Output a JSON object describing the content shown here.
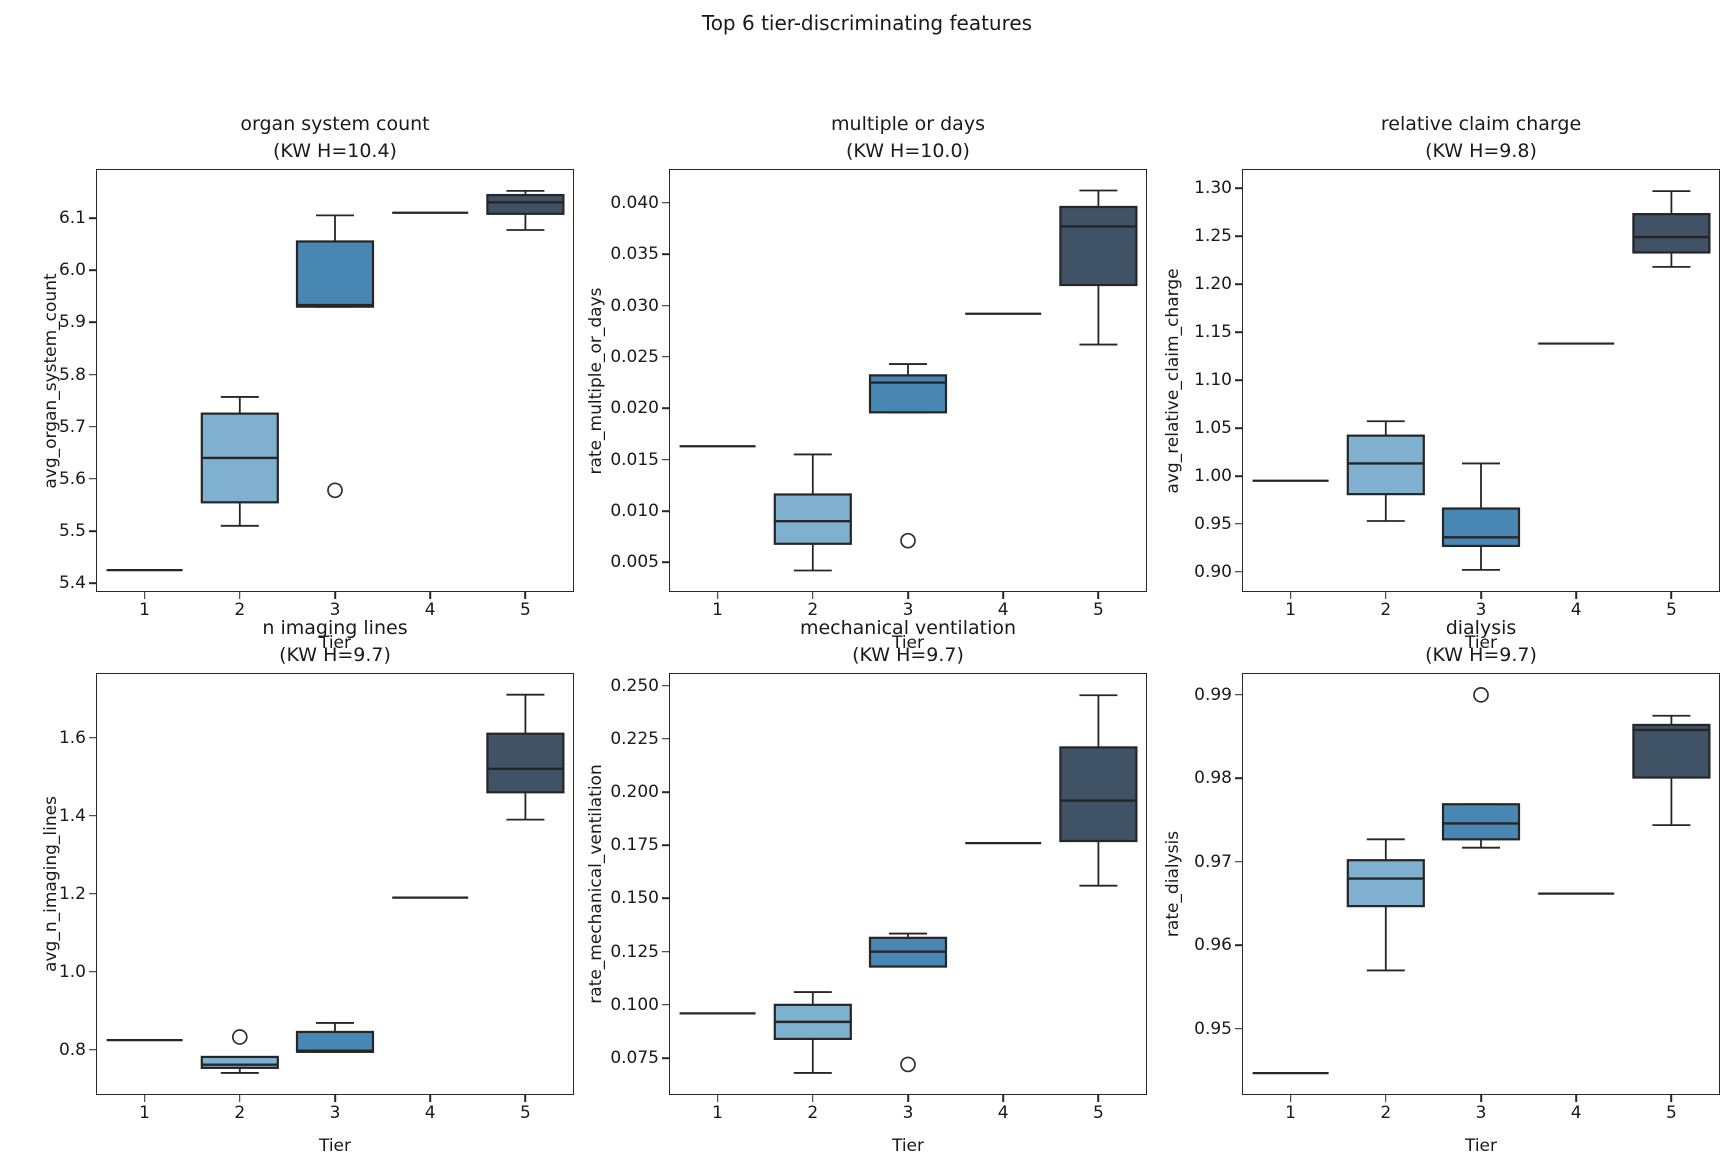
{
  "figure": {
    "title": "Top 6 tier-discriminating features",
    "xlabel": "Tier",
    "tiers": [
      "1",
      "2",
      "3",
      "4",
      "5"
    ],
    "ink_color": "#262626",
    "outlier_color": "#2f2f2f",
    "tier_box_colors": {
      "tier2": "#7fb0d0",
      "tier3": "#4886b4",
      "tier5": "#405266"
    }
  },
  "chart_data": [
    {
      "type": "box",
      "title_line1": "organ system count",
      "title_line2": "(KW H=10.4)",
      "ylabel": "avg_organ_system_count",
      "xlabel": "Tier",
      "categories": [
        "1",
        "2",
        "3",
        "4",
        "5"
      ],
      "ylim": [
        5.385,
        6.192
      ],
      "yticks": [
        {
          "v": 5.4,
          "label": "5.4"
        },
        {
          "v": 5.5,
          "label": "5.5"
        },
        {
          "v": 5.6,
          "label": "5.6"
        },
        {
          "v": 5.7,
          "label": "5.7"
        },
        {
          "v": 5.8,
          "label": "5.8"
        },
        {
          "v": 5.9,
          "label": "5.9"
        },
        {
          "v": 6.0,
          "label": "6.0"
        },
        {
          "v": 6.1,
          "label": "6.1"
        }
      ],
      "boxes": [
        {
          "tier": "1",
          "single": 5.425,
          "color": null,
          "fliers": []
        },
        {
          "tier": "2",
          "whislo": 5.51,
          "q1": 5.555,
          "med": 5.64,
          "q3": 5.725,
          "whishi": 5.757,
          "color": "#7fb0d0",
          "fliers": []
        },
        {
          "tier": "3",
          "whislo": 5.93,
          "q1": 5.93,
          "med": 5.933,
          "q3": 6.055,
          "whishi": 6.105,
          "color": "#4886b4",
          "fliers": [
            5.578
          ]
        },
        {
          "tier": "4",
          "single": 6.11,
          "color": null,
          "fliers": []
        },
        {
          "tier": "5",
          "whislo": 6.077,
          "q1": 6.108,
          "med": 6.13,
          "q3": 6.144,
          "whishi": 6.152,
          "color": "#405266",
          "fliers": []
        }
      ]
    },
    {
      "type": "box",
      "title_line1": "multiple or days",
      "title_line2": "(KW H=10.0)",
      "ylabel": "rate_multiple_or_days",
      "xlabel": "Tier",
      "categories": [
        "1",
        "2",
        "3",
        "4",
        "5"
      ],
      "ylim": [
        0.0022,
        0.0432
      ],
      "yticks": [
        {
          "v": 0.005,
          "label": "0.005"
        },
        {
          "v": 0.01,
          "label": "0.010"
        },
        {
          "v": 0.015,
          "label": "0.015"
        },
        {
          "v": 0.02,
          "label": "0.020"
        },
        {
          "v": 0.025,
          "label": "0.025"
        },
        {
          "v": 0.03,
          "label": "0.030"
        },
        {
          "v": 0.035,
          "label": "0.035"
        },
        {
          "v": 0.04,
          "label": "0.040"
        }
      ],
      "boxes": [
        {
          "tier": "1",
          "single": 0.0163,
          "color": null,
          "fliers": []
        },
        {
          "tier": "2",
          "whislo": 0.0042,
          "q1": 0.0068,
          "med": 0.009,
          "q3": 0.0116,
          "whishi": 0.0155,
          "color": "#7fb0d0",
          "fliers": []
        },
        {
          "tier": "3",
          "whislo": 0.0196,
          "q1": 0.0196,
          "med": 0.0225,
          "q3": 0.0232,
          "whishi": 0.0243,
          "color": "#4886b4",
          "fliers": [
            0.0071
          ]
        },
        {
          "tier": "4",
          "single": 0.0292,
          "color": null,
          "fliers": []
        },
        {
          "tier": "5",
          "whislo": 0.0262,
          "q1": 0.032,
          "med": 0.0377,
          "q3": 0.0396,
          "whishi": 0.0412,
          "color": "#405266",
          "fliers": []
        }
      ]
    },
    {
      "type": "box",
      "title_line1": "relative claim charge",
      "title_line2": "(KW H=9.8)",
      "ylabel": "avg_relative_claim_charge",
      "xlabel": "Tier",
      "categories": [
        "1",
        "2",
        "3",
        "4",
        "5"
      ],
      "ylim": [
        0.88,
        1.319
      ],
      "yticks": [
        {
          "v": 0.9,
          "label": "0.90"
        },
        {
          "v": 0.95,
          "label": "0.95"
        },
        {
          "v": 1.0,
          "label": "1.00"
        },
        {
          "v": 1.05,
          "label": "1.05"
        },
        {
          "v": 1.1,
          "label": "1.10"
        },
        {
          "v": 1.15,
          "label": "1.15"
        },
        {
          "v": 1.2,
          "label": "1.20"
        },
        {
          "v": 1.25,
          "label": "1.25"
        },
        {
          "v": 1.3,
          "label": "1.30"
        }
      ],
      "boxes": [
        {
          "tier": "1",
          "single": 0.995,
          "color": null,
          "fliers": []
        },
        {
          "tier": "2",
          "whislo": 0.953,
          "q1": 0.981,
          "med": 1.013,
          "q3": 1.042,
          "whishi": 1.057,
          "color": "#7fb0d0",
          "fliers": []
        },
        {
          "tier": "3",
          "whislo": 0.902,
          "q1": 0.927,
          "med": 0.936,
          "q3": 0.966,
          "whishi": 1.013,
          "color": "#4886b4",
          "fliers": []
        },
        {
          "tier": "4",
          "single": 1.138,
          "color": null,
          "fliers": []
        },
        {
          "tier": "5",
          "whislo": 1.218,
          "q1": 1.233,
          "med": 1.249,
          "q3": 1.273,
          "whishi": 1.297,
          "color": "#405266",
          "fliers": []
        }
      ]
    },
    {
      "type": "box",
      "title_line1": "n imaging lines",
      "title_line2": "(KW H=9.7)",
      "ylabel": "avg_n_imaging_lines",
      "xlabel": "Tier",
      "categories": [
        "1",
        "2",
        "3",
        "4",
        "5"
      ],
      "ylim": [
        0.687,
        1.763
      ],
      "yticks": [
        {
          "v": 0.8,
          "label": "0.8"
        },
        {
          "v": 1.0,
          "label": "1.0"
        },
        {
          "v": 1.2,
          "label": "1.2"
        },
        {
          "v": 1.4,
          "label": "1.4"
        },
        {
          "v": 1.6,
          "label": "1.6"
        }
      ],
      "boxes": [
        {
          "tier": "1",
          "single": 0.825,
          "color": null,
          "fliers": []
        },
        {
          "tier": "2",
          "whislo": 0.741,
          "q1": 0.754,
          "med": 0.762,
          "q3": 0.782,
          "whishi": 0.782,
          "color": "#7fb0d0",
          "fliers": [
            0.833
          ]
        },
        {
          "tier": "3",
          "whislo": 0.795,
          "q1": 0.795,
          "med": 0.798,
          "q3": 0.846,
          "whishi": 0.869,
          "color": "#4886b4",
          "fliers": []
        },
        {
          "tier": "4",
          "single": 1.19,
          "color": null,
          "fliers": []
        },
        {
          "tier": "5",
          "whislo": 1.39,
          "q1": 1.46,
          "med": 1.52,
          "q3": 1.61,
          "whishi": 1.71,
          "color": "#405266",
          "fliers": []
        }
      ]
    },
    {
      "type": "box",
      "title_line1": "mechanical ventilation",
      "title_line2": "(KW H=9.7)",
      "ylabel": "rate_mechanical_ventilation",
      "xlabel": "Tier",
      "categories": [
        "1",
        "2",
        "3",
        "4",
        "5"
      ],
      "ylim": [
        0.0581,
        0.2555
      ],
      "yticks": [
        {
          "v": 0.075,
          "label": "0.075"
        },
        {
          "v": 0.1,
          "label": "0.100"
        },
        {
          "v": 0.125,
          "label": "0.125"
        },
        {
          "v": 0.15,
          "label": "0.150"
        },
        {
          "v": 0.175,
          "label": "0.175"
        },
        {
          "v": 0.2,
          "label": "0.200"
        },
        {
          "v": 0.225,
          "label": "0.225"
        },
        {
          "v": 0.25,
          "label": "0.250"
        }
      ],
      "boxes": [
        {
          "tier": "1",
          "single": 0.096,
          "color": null,
          "fliers": []
        },
        {
          "tier": "2",
          "whislo": 0.068,
          "q1": 0.084,
          "med": 0.092,
          "q3": 0.1,
          "whishi": 0.106,
          "color": "#7fb0d0",
          "fliers": []
        },
        {
          "tier": "3",
          "whislo": 0.118,
          "q1": 0.118,
          "med": 0.125,
          "q3": 0.1315,
          "whishi": 0.1335,
          "color": "#4886b4",
          "fliers": [
            0.072
          ]
        },
        {
          "tier": "4",
          "single": 0.176,
          "color": null,
          "fliers": []
        },
        {
          "tier": "5",
          "whislo": 0.156,
          "q1": 0.177,
          "med": 0.196,
          "q3": 0.221,
          "whishi": 0.2455,
          "color": "#405266",
          "fliers": []
        }
      ]
    },
    {
      "type": "box",
      "title_line1": "dialysis",
      "title_line2": "(KW H=9.7)",
      "ylabel": "rate_dialysis",
      "xlabel": "Tier",
      "categories": [
        "1",
        "2",
        "3",
        "4",
        "5"
      ],
      "ylim": [
        0.9422,
        0.9925
      ],
      "yticks": [
        {
          "v": 0.95,
          "label": "0.95"
        },
        {
          "v": 0.96,
          "label": "0.96"
        },
        {
          "v": 0.97,
          "label": "0.97"
        },
        {
          "v": 0.98,
          "label": "0.98"
        },
        {
          "v": 0.99,
          "label": "0.99"
        }
      ],
      "boxes": [
        {
          "tier": "1",
          "single": 0.9447,
          "color": null,
          "fliers": []
        },
        {
          "tier": "2",
          "whislo": 0.957,
          "q1": 0.9647,
          "med": 0.968,
          "q3": 0.9702,
          "whishi": 0.9727,
          "color": "#7fb0d0",
          "fliers": []
        },
        {
          "tier": "3",
          "whislo": 0.9717,
          "q1": 0.9727,
          "med": 0.9746,
          "q3": 0.9769,
          "whishi": 0.9769,
          "color": "#4886b4",
          "fliers": [
            0.99
          ]
        },
        {
          "tier": "4",
          "single": 0.9662,
          "color": null,
          "fliers": []
        },
        {
          "tier": "5",
          "whislo": 0.9744,
          "q1": 0.9801,
          "med": 0.9858,
          "q3": 0.9864,
          "whishi": 0.9875,
          "color": "#405266",
          "fliers": []
        }
      ]
    }
  ]
}
